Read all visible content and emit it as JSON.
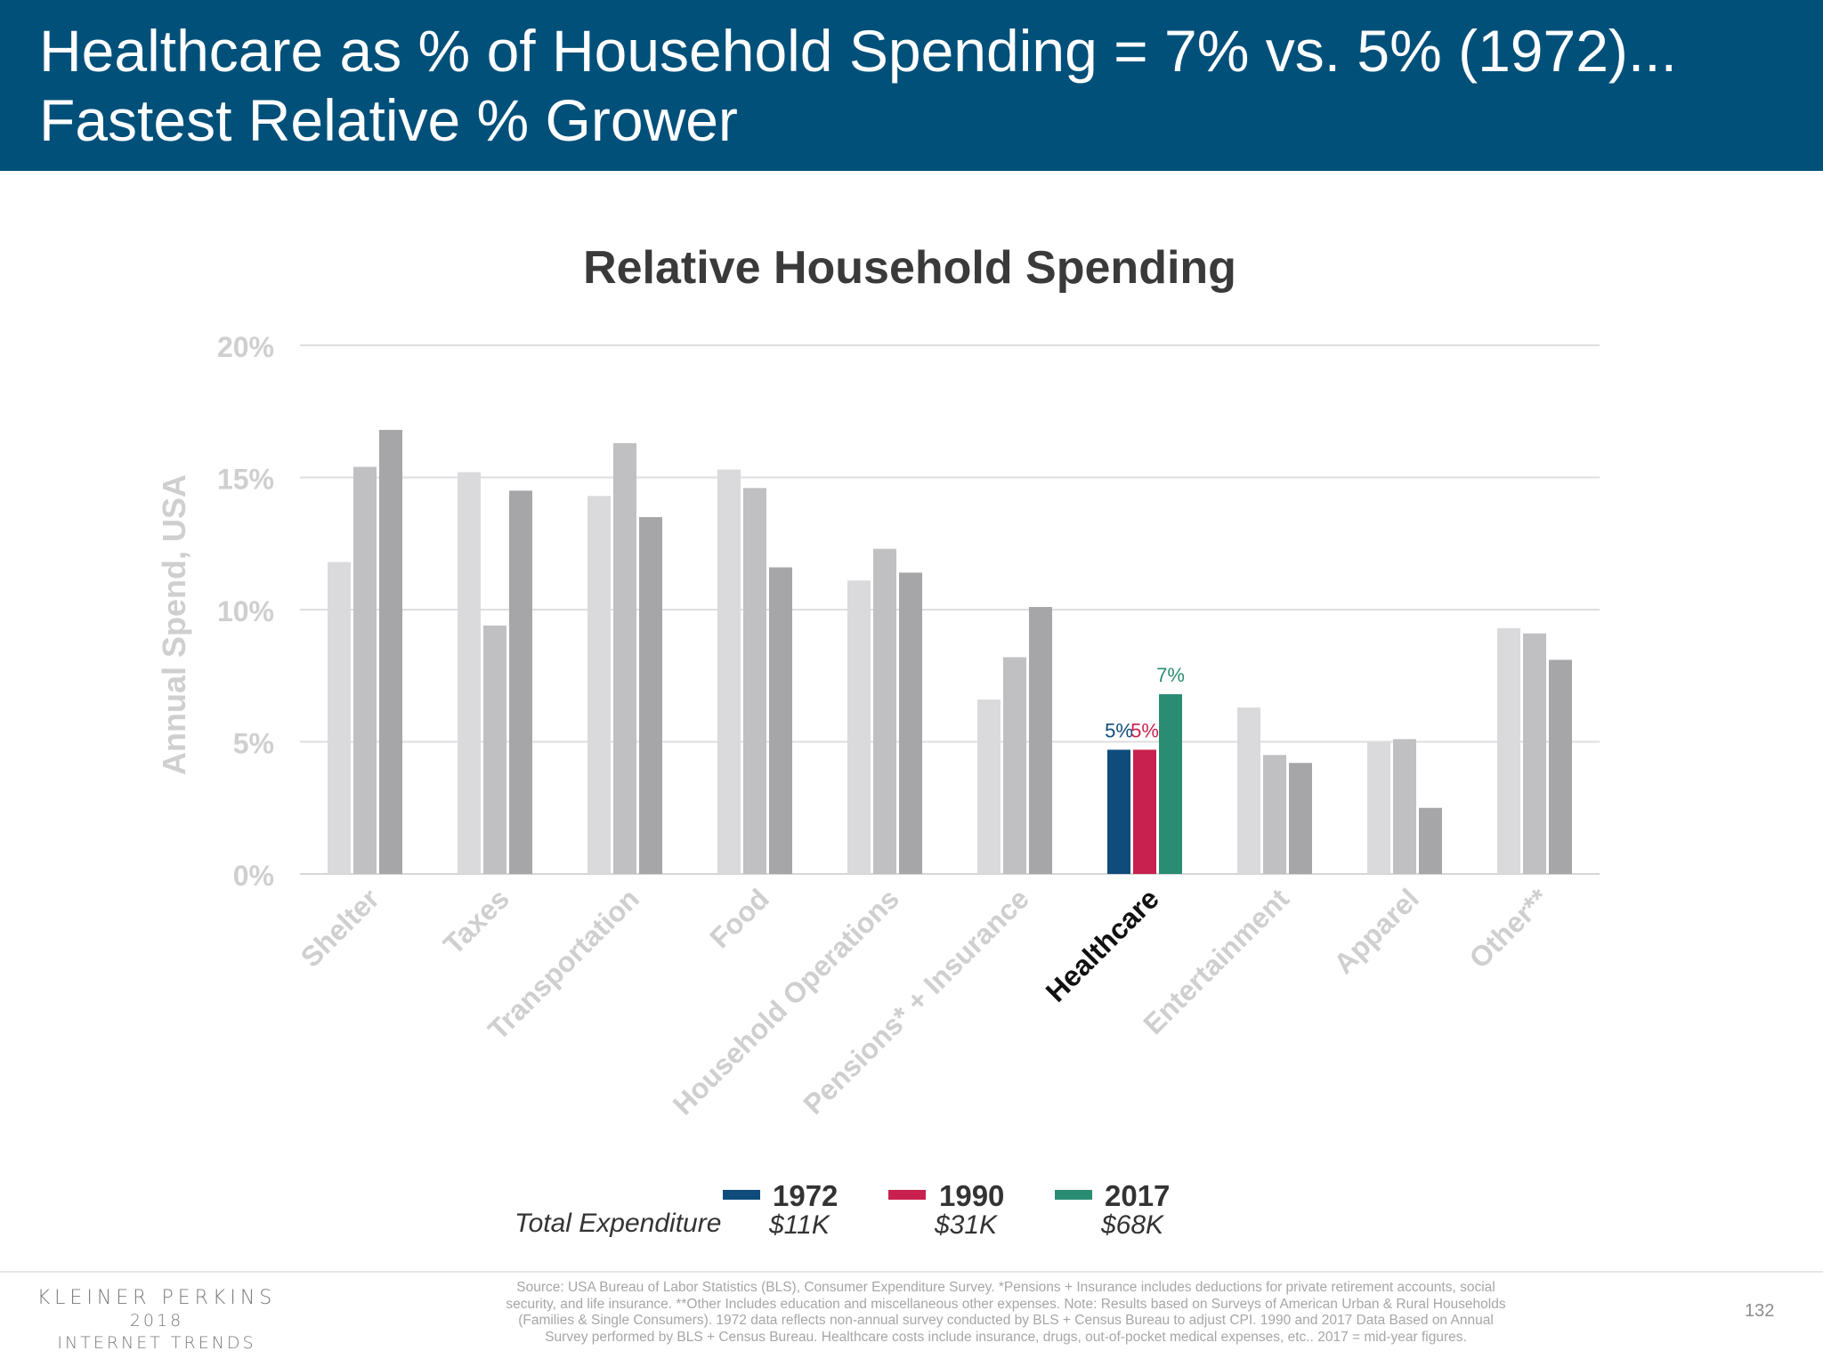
{
  "header": {
    "title_line1": "Healthcare as % of Household Spending = 7% vs. 5% (1972)...",
    "title_line2": "Fastest Relative % Grower"
  },
  "chart_data": {
    "type": "bar",
    "title": "Relative Household Spending",
    "ylabel": "Annual Spend, USA",
    "xlabel": "",
    "ylim": [
      0,
      20
    ],
    "yticks": [
      "0%",
      "5%",
      "10%",
      "15%",
      "20%"
    ],
    "grid": true,
    "categories": [
      "Shelter",
      "Taxes",
      "Transportation",
      "Food",
      "Household Operations",
      "Pensions* + Insurance",
      "Healthcare",
      "Entertainment",
      "Apparel",
      "Other**"
    ],
    "highlight_category": "Healthcare",
    "series": [
      {
        "name": "1972",
        "total": "$11K",
        "color": "#0f4c7c",
        "values": [
          11.8,
          15.2,
          14.3,
          15.3,
          11.1,
          6.6,
          4.7,
          6.3,
          5.0,
          9.3
        ]
      },
      {
        "name": "1990",
        "total": "$31K",
        "color": "#c9214f",
        "values": [
          15.4,
          9.4,
          16.3,
          14.6,
          12.3,
          8.2,
          4.7,
          4.5,
          5.1,
          9.1
        ]
      },
      {
        "name": "2017",
        "total": "$68K",
        "color": "#2a8c72",
        "values": [
          16.8,
          14.5,
          13.5,
          11.6,
          11.4,
          10.1,
          6.8,
          4.2,
          2.5,
          8.1
        ]
      }
    ],
    "data_labels": {
      "1972": "5%",
      "1990": "5%",
      "2017": "7%"
    },
    "muted_colors": [
      "#dadadc",
      "#c0bfc1",
      "#a6a5a7"
    ],
    "legend_placement": "bottom",
    "legend_row_label": "Total Expenditure"
  },
  "footer": {
    "logo_line1": "KLEINER PERKINS",
    "logo_line2": "2018",
    "logo_line3": "INTERNET TRENDS",
    "source_line1": "Source: USA Bureau of Labor Statistics (BLS), Consumer Expenditure Survey. *Pensions + Insurance includes deductions for private retirement accounts, social",
    "source_line2": "security, and life insurance. **Other Includes education and miscellaneous other expenses. Note: Results based on Surveys of American Urban & Rural Households",
    "source_line3": "(Families & Single Consumers).  1972 data reflects non-annual survey conducted by BLS + Census Bureau to adjust CPI.  1990 and 2017 Data Based on Annual",
    "source_line4": "Survey performed by BLS + Census Bureau. Healthcare costs include insurance, drugs, out-of-pocket medical expenses, etc.. 2017 = mid-year figures.",
    "page_number": "132"
  }
}
